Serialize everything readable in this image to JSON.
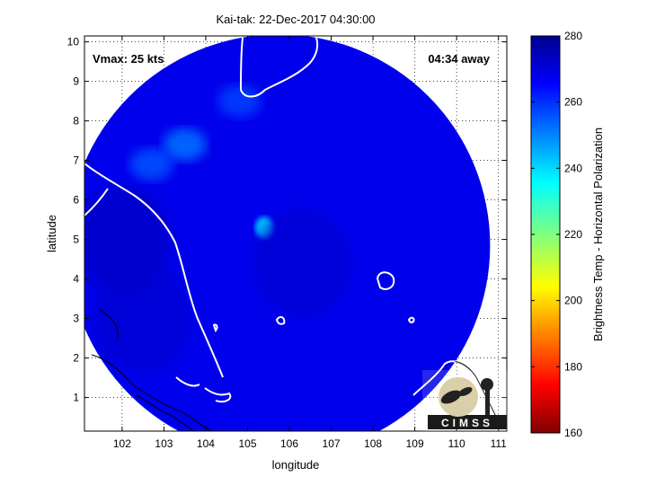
{
  "chart_data": {
    "type": "heatmap",
    "title": "Kai-tak: 22-Dec-2017 04:30:00",
    "xlabel": "longitude",
    "ylabel": "latitude",
    "xlim": [
      101.1,
      111.2
    ],
    "ylim": [
      0.15,
      10.15
    ],
    "xticks": [
      102,
      103,
      104,
      105,
      106,
      107,
      108,
      109,
      110,
      111
    ],
    "yticks": [
      1,
      2,
      3,
      4,
      5,
      6,
      7,
      8,
      9,
      10
    ],
    "grid": true,
    "annotations": {
      "vmax": "Vmax: 25 kts",
      "time_away": "04:34 away"
    },
    "colorbar": {
      "label": "Brightness Temp - Horizontal Polarization",
      "min": 160,
      "max": 280,
      "ticks": [
        160,
        180,
        200,
        220,
        240,
        260,
        280
      ]
    },
    "swath": {
      "center_lon": 105.75,
      "center_lat": 4.85,
      "radius_deg": 5.05,
      "background_value": 268
    },
    "features": [
      {
        "lon": 105.4,
        "lat": 5.3,
        "value": 238
      },
      {
        "lon": 103.5,
        "lat": 7.4,
        "value": 252
      },
      {
        "lon": 102.7,
        "lat": 6.9,
        "value": 256
      },
      {
        "lon": 104.8,
        "lat": 8.5,
        "value": 258
      },
      {
        "lon": 102.0,
        "lat": 5.0,
        "value": 274
      },
      {
        "lon": 102.5,
        "lat": 3.0,
        "value": 272
      },
      {
        "lon": 106.3,
        "lat": 4.4,
        "value": 272
      }
    ],
    "logo": "CIMSS"
  }
}
